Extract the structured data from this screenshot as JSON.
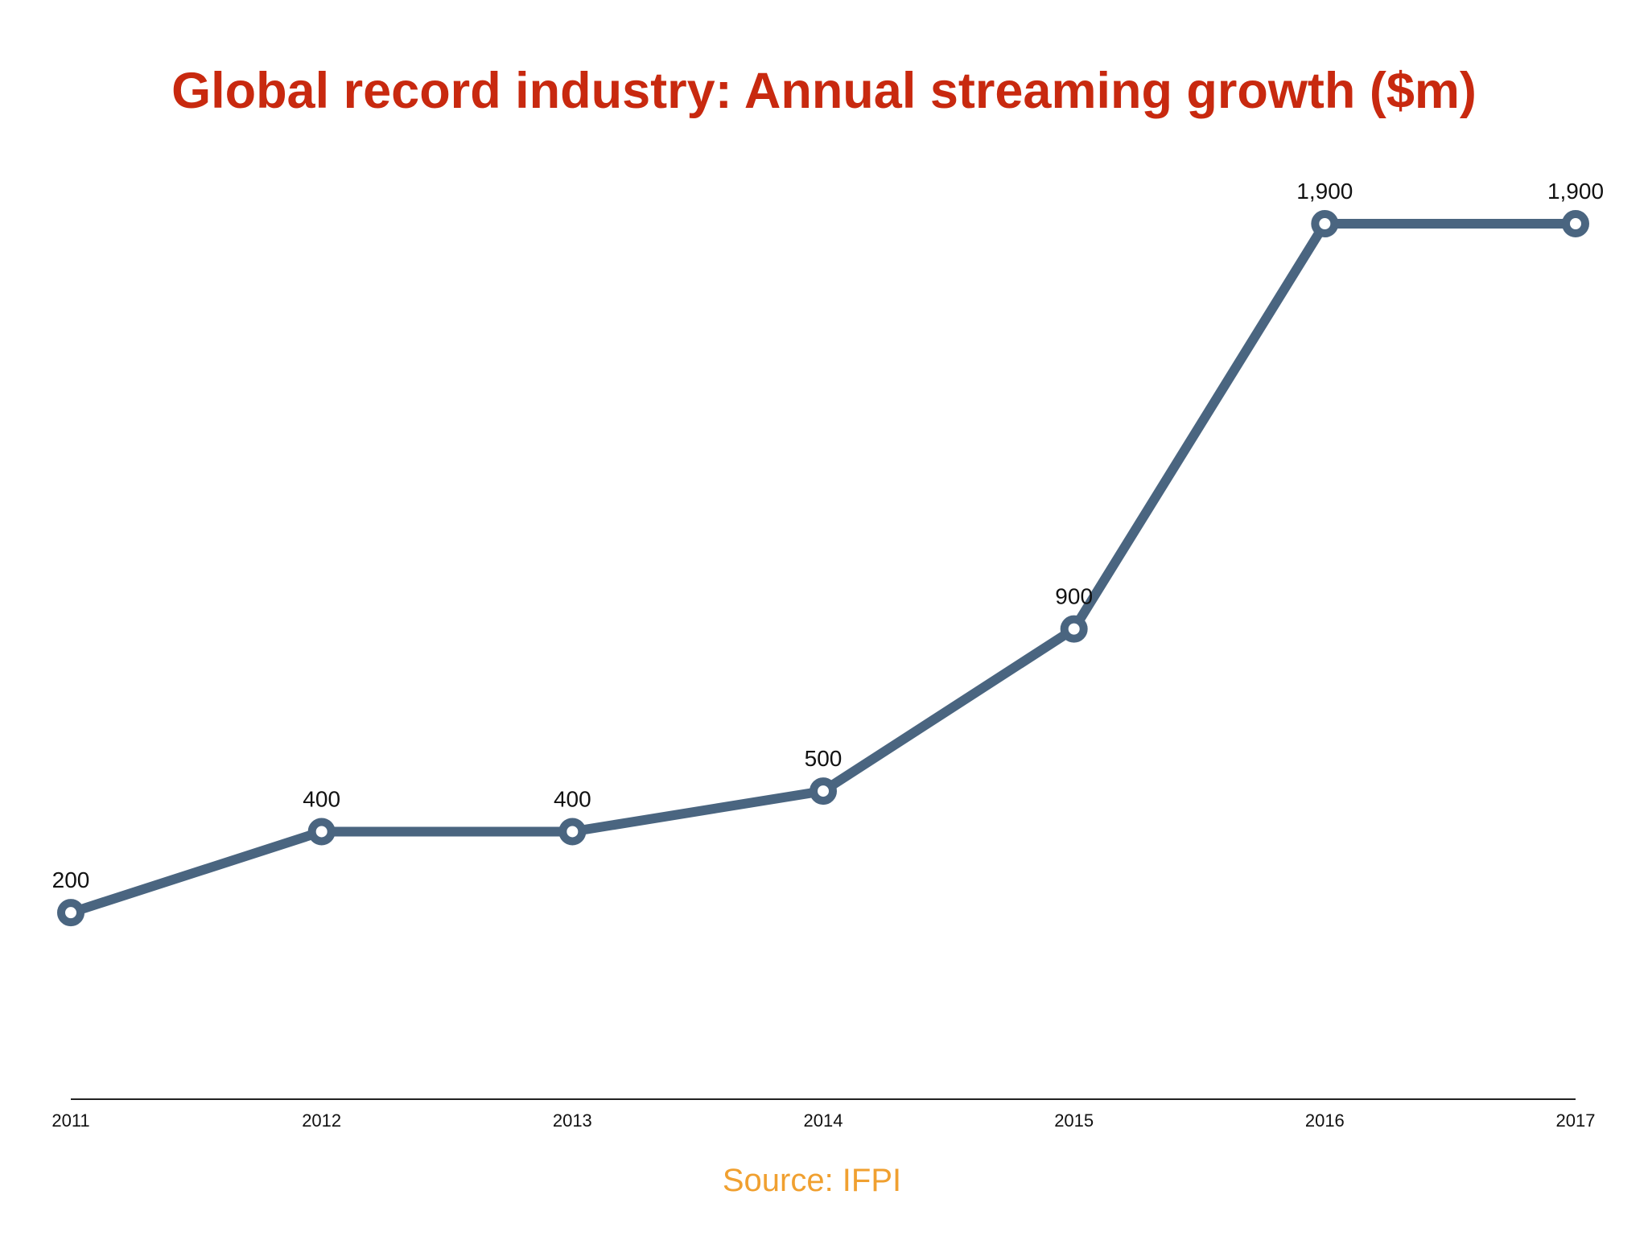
{
  "title": "Global record industry: Annual streaming growth ($m)",
  "source": "Source: IFPI",
  "colors": {
    "title": "#c8290f",
    "line": "#4a6580",
    "marker_fill": "#ffffff",
    "axis": "#222222",
    "label": "#111111",
    "source": "#f0a030"
  },
  "chart_data": {
    "type": "line",
    "title": "Global record industry: Annual streaming growth ($m)",
    "xlabel": "",
    "ylabel": "",
    "categories": [
      "2011",
      "2012",
      "2013",
      "2014",
      "2015",
      "2016",
      "2017"
    ],
    "series": [
      {
        "values": [
          200,
          400,
          400,
          500,
          900,
          1900,
          1900
        ],
        "labels": [
          "200",
          "400",
          "400",
          "500",
          "900",
          "1,900",
          "1,900"
        ]
      }
    ],
    "ylim": [
      -30,
      1900
    ],
    "grid": false,
    "legend": "none",
    "markers": "hollow-circle"
  }
}
